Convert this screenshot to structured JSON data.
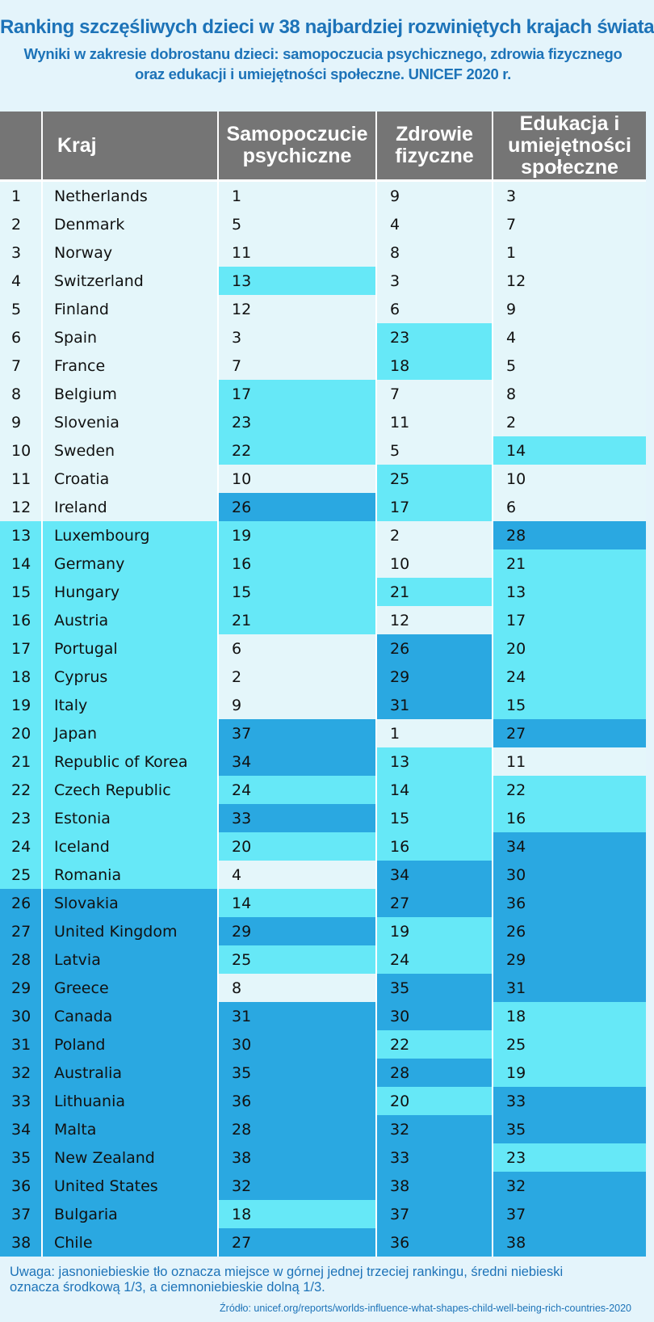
{
  "header": {
    "title": "Ranking szczęśliwych dzieci w 38 najbardziej rozwiniętych krajach świata",
    "subtitle_line1": "Wyniki w zakresie dobrostanu dzieci: samopoczucia psychicznego, zdrowia fizycznego",
    "subtitle_line2": "oraz edukacji i umiejętności społeczne.  UNICEF 2020 r."
  },
  "colors": {
    "top_third": "#e4f6fa",
    "middle_third": "#66e8f7",
    "bottom_third": "#2aa8e1",
    "header_bg": "#757575",
    "title_text": "#1d73b8"
  },
  "chart_data": {
    "type": "table",
    "columns": [
      "",
      "Kraj",
      "Samopoczucie psychiczne",
      "Zdrowie fizyczne",
      "Edukacja i umiejętności społeczne"
    ],
    "column_lines": [
      [
        ""
      ],
      [
        "Kraj"
      ],
      [
        "Samopoczucie",
        "psychiczne"
      ],
      [
        "Zdrowie",
        "fizyczne"
      ],
      [
        "Edukacja i",
        "umiejętności",
        "społeczne"
      ]
    ],
    "rows": [
      [
        1,
        "Netherlands",
        1,
        9,
        3
      ],
      [
        2,
        "Denmark",
        5,
        4,
        7
      ],
      [
        3,
        "Norway",
        11,
        8,
        1
      ],
      [
        4,
        "Switzerland",
        13,
        3,
        12
      ],
      [
        5,
        "Finland",
        12,
        6,
        9
      ],
      [
        6,
        "Spain",
        3,
        23,
        4
      ],
      [
        7,
        "France",
        7,
        18,
        5
      ],
      [
        8,
        "Belgium",
        17,
        7,
        8
      ],
      [
        9,
        "Slovenia",
        23,
        11,
        2
      ],
      [
        10,
        "Sweden",
        22,
        5,
        14
      ],
      [
        11,
        "Croatia",
        10,
        25,
        10
      ],
      [
        12,
        "Ireland",
        26,
        17,
        6
      ],
      [
        13,
        "Luxembourg",
        19,
        2,
        28
      ],
      [
        14,
        "Germany",
        16,
        10,
        21
      ],
      [
        15,
        "Hungary",
        15,
        21,
        13
      ],
      [
        16,
        "Austria",
        21,
        12,
        17
      ],
      [
        17,
        "Portugal",
        6,
        26,
        20
      ],
      [
        18,
        "Cyprus",
        2,
        29,
        24
      ],
      [
        19,
        "Italy",
        9,
        31,
        15
      ],
      [
        20,
        "Japan",
        37,
        1,
        27
      ],
      [
        21,
        "Republic of Korea",
        34,
        13,
        11
      ],
      [
        22,
        "Czech Republic",
        24,
        14,
        22
      ],
      [
        23,
        "Estonia",
        33,
        15,
        16
      ],
      [
        24,
        "Iceland",
        20,
        16,
        34
      ],
      [
        25,
        "Romania",
        4,
        34,
        30
      ],
      [
        26,
        "Slovakia",
        14,
        27,
        36
      ],
      [
        27,
        "United Kingdom",
        29,
        19,
        26
      ],
      [
        28,
        "Latvia",
        25,
        24,
        29
      ],
      [
        29,
        "Greece",
        8,
        35,
        31
      ],
      [
        30,
        "Canada",
        31,
        30,
        18
      ],
      [
        31,
        "Poland",
        30,
        22,
        25
      ],
      [
        32,
        "Australia",
        35,
        28,
        19
      ],
      [
        33,
        "Lithuania",
        36,
        20,
        33
      ],
      [
        34,
        "Malta",
        28,
        32,
        35
      ],
      [
        35,
        "New Zealand",
        38,
        33,
        23
      ],
      [
        36,
        "United States",
        32,
        38,
        32
      ],
      [
        37,
        "Bulgaria",
        18,
        37,
        37
      ],
      [
        38,
        "Chile",
        27,
        36,
        38
      ]
    ]
  },
  "footer": {
    "note_line1": "Uwaga: jasnoniebieskie tło oznacza miejsce w górnej jednej trzeciej rankingu, średni niebieski",
    "note_line2": "oznacza środkową 1/3, a ciemnoniebieskie dolną 1/3.",
    "source": "Źródło: unicef.org/reports/worlds-influence-what-shapes-child-well-being-rich-countries-2020"
  }
}
